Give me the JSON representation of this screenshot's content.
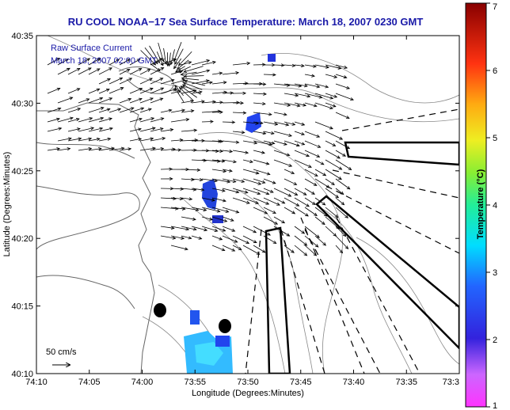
{
  "title": "RU COOL  NOAA−17  Sea Surface Temperature:  March 18, 2007 0230 GMT",
  "legend": {
    "line1": "Raw Surface Current",
    "line2": "March 18, 2007 02:00 GMT",
    "scale_label": "50 cm/s"
  },
  "axes": {
    "xlabel": "Longitude (Degrees:Minutes)",
    "ylabel": "Latitude (Degrees:Minutes)",
    "x_ticks": [
      "74:10",
      "74:05",
      "74:00",
      "73:55",
      "73:50",
      "73:45",
      "73:40",
      "73:35",
      "73:3"
    ],
    "y_ticks": [
      "40:35",
      "40:30",
      "40:25",
      "40:20",
      "40:15",
      "40:10"
    ]
  },
  "colorbar": {
    "title": "Temperature (°C)",
    "ticks": [
      "7",
      "6",
      "5",
      "4",
      "3",
      "2",
      "1"
    ],
    "range": [
      1,
      7
    ]
  },
  "colors": {
    "title": "#1a1aa8",
    "coast": "#666666",
    "vector": "#000000",
    "sst_cold": "#2233dd",
    "sst_warm": "#33ccff"
  }
}
